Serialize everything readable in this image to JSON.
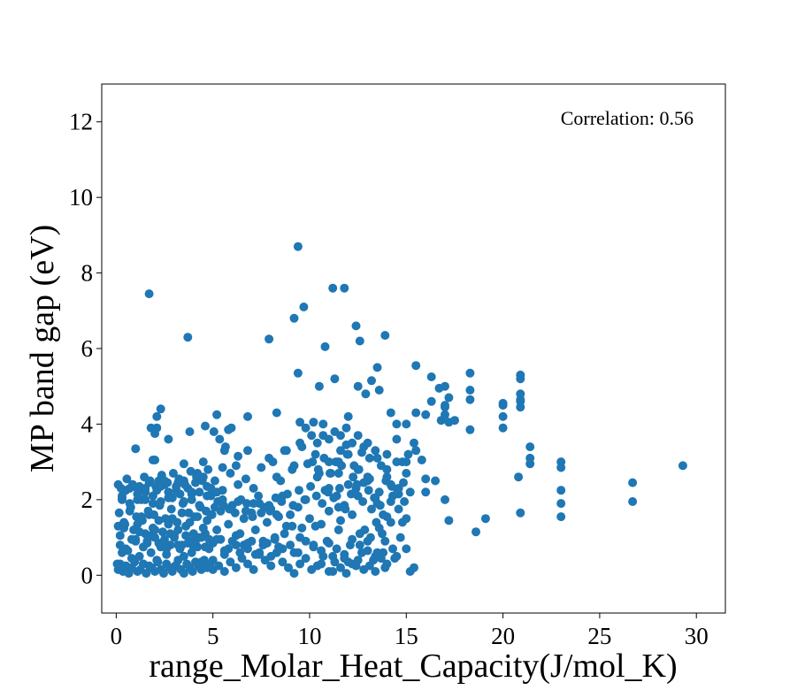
{
  "chart_data": {
    "type": "scatter",
    "xlabel": "range_Molar_Heat_Capacity(J/mol_K)",
    "ylabel": "MP band gap (eV)",
    "annotation": "Correlation: 0.56",
    "xlim": [
      -0.75,
      31.5
    ],
    "ylim": [
      -1,
      13
    ],
    "xticks": [
      0,
      5,
      10,
      15,
      20,
      25,
      30
    ],
    "yticks": [
      0,
      2,
      4,
      6,
      8,
      10,
      12
    ],
    "marker_color": "#1f77b4",
    "series": [
      {
        "x": [
          1.7,
          3.7,
          7.9,
          9.2,
          9.4,
          9.7,
          11.2,
          11.8,
          12.4,
          12.6,
          13.9,
          10.8,
          9.4,
          10.5,
          11.3,
          12.5,
          13.2,
          13.6,
          14.2,
          14.5,
          15.5,
          17.0,
          18.3,
          20.9,
          20.9,
          20.9,
          20.0,
          20.0,
          20.0,
          20.0,
          20.9,
          20.9,
          20.9,
          21.4,
          21.4,
          21.4,
          23.0,
          23.0,
          23.0,
          23.0,
          23.0,
          20.8,
          20.9,
          29.3,
          26.7,
          26.7,
          18.6,
          19.1,
          17.2,
          18.3,
          18.3,
          18.3,
          16.7,
          16.8,
          17.0,
          17.2,
          17.0,
          17.0,
          17.2,
          17.5,
          16.3,
          16.3,
          16.0,
          15.8,
          14.8,
          15.0,
          15.1,
          15.4,
          13.5,
          12.9,
          12.0,
          11.6,
          10.2,
          9.8,
          9.5,
          8.3,
          8.1,
          6.8,
          6.3,
          5.8,
          5.2,
          4.6,
          3.8,
          2.3,
          2.1,
          2.0,
          1.8,
          1.5,
          0.3,
          0.1,
          0.05,
          0.2,
          0.3,
          0.4,
          0.5,
          0.6,
          0.7,
          0.8,
          0.9,
          1.0,
          1.1,
          1.2,
          1.3,
          1.4,
          1.5,
          1.6,
          1.7,
          1.8,
          1.9,
          2.0,
          2.1,
          2.2,
          2.3,
          2.4,
          2.5,
          2.6,
          2.7,
          2.8,
          2.9,
          3.0,
          3.1,
          3.2,
          3.3,
          3.4,
          3.5,
          3.6,
          3.7,
          3.8,
          3.9,
          4.0,
          4.1,
          4.2,
          4.3,
          4.4,
          4.5,
          4.6,
          4.7,
          4.8,
          4.9,
          5.0,
          5.2,
          5.4,
          5.6,
          5.8,
          6.0,
          6.2,
          6.4,
          6.6,
          6.8,
          7.0,
          7.2,
          7.4,
          7.6,
          7.8,
          8.0,
          8.2,
          8.4,
          8.6,
          8.8,
          9.0,
          9.2,
          9.4,
          9.6,
          9.8,
          10.0,
          10.2,
          10.4,
          10.6,
          10.8,
          11.0,
          11.2,
          11.4,
          11.6,
          11.8,
          12.0,
          12.2,
          12.4,
          12.6,
          12.8,
          13.0,
          13.2,
          13.4,
          13.6,
          13.8,
          14.0,
          14.2,
          14.4,
          14.6,
          14.8,
          15.0,
          15.2,
          15.4,
          0.1,
          0.2,
          0.35,
          0.5,
          0.65,
          0.8,
          0.95,
          1.1,
          1.25,
          1.4,
          1.55,
          1.7,
          1.85,
          2.0,
          2.15,
          2.3,
          2.45,
          2.6,
          2.75,
          2.9,
          3.05,
          3.2,
          3.35,
          3.5,
          3.65,
          3.8,
          3.95,
          4.1,
          4.25,
          4.4,
          4.55,
          4.7,
          4.85,
          5.0,
          5.3,
          5.6,
          5.9,
          6.2,
          6.5,
          6.8,
          7.1,
          7.4,
          7.7,
          8.0,
          8.3,
          8.6,
          8.9,
          9.2,
          9.5,
          9.8,
          10.1,
          10.4,
          10.7,
          11.0,
          11.3,
          11.6,
          11.9,
          12.2,
          12.5,
          12.8,
          13.1,
          13.4,
          13.7,
          14.0,
          14.3,
          14.6,
          14.9,
          15.2,
          0.1,
          0.3,
          0.5,
          0.7,
          0.9,
          1.1,
          1.3,
          1.5,
          1.7,
          1.9,
          2.1,
          2.3,
          2.5,
          2.7,
          2.9,
          3.1,
          3.3,
          3.5,
          3.7,
          3.9,
          4.1,
          4.3,
          4.5,
          4.7,
          4.9,
          5.1,
          5.5,
          5.9,
          6.3,
          6.7,
          7.1,
          7.5,
          7.9,
          8.3,
          8.7,
          9.1,
          9.5,
          9.9,
          10.3,
          10.7,
          11.1,
          11.5,
          11.9,
          12.3,
          12.7,
          13.1,
          13.5,
          13.9,
          14.3,
          14.7,
          0.2,
          0.6,
          1.0,
          1.4,
          1.8,
          2.2,
          2.6,
          3.0,
          3.4,
          3.8,
          4.2,
          4.6,
          5.0,
          5.4,
          5.8,
          6.2,
          6.6,
          7.0,
          7.4,
          7.8,
          8.2,
          8.6,
          9.0,
          9.4,
          9.8,
          10.2,
          10.6,
          11.0,
          11.4,
          11.8,
          12.2,
          12.6,
          13.0,
          13.4,
          13.8,
          14.2,
          14.6,
          15.0,
          0.15,
          0.45,
          0.75,
          1.05,
          1.35,
          1.65,
          1.95,
          2.25,
          2.55,
          2.85,
          3.15,
          3.45,
          3.75,
          4.05,
          4.35,
          4.65,
          4.95,
          5.25,
          5.55,
          5.85,
          6.15,
          6.45,
          6.75,
          7.05,
          7.35,
          7.65,
          7.95,
          8.25,
          8.55,
          8.85,
          9.15,
          9.45,
          9.75,
          10.05,
          10.35,
          10.65,
          10.95,
          11.25,
          11.55,
          11.85,
          12.15,
          12.45,
          12.75,
          13.05,
          13.35,
          13.65,
          13.95,
          14.25,
          14.55,
          14.85,
          0.25,
          0.55,
          0.85,
          1.15,
          1.45,
          1.75,
          2.05,
          2.35,
          2.65,
          2.95,
          3.25,
          3.55,
          3.85,
          4.15,
          4.45,
          4.75,
          5.05,
          5.35,
          5.65,
          5.95,
          10.1,
          10.4,
          10.7,
          11.0,
          11.3,
          11.6,
          11.9,
          12.2,
          12.5,
          12.8,
          13.1,
          13.4,
          13.7,
          14.0,
          10.15,
          10.45,
          10.75,
          11.05,
          11.35,
          11.65,
          11.95,
          12.25,
          12.55,
          12.85,
          13.15,
          13.45,
          13.75,
          10.3,
          10.9,
          11.5,
          12.1,
          12.7,
          13.3,
          13.9,
          14.5,
          10.6,
          11.2,
          11.8,
          12.4,
          13.0,
          13.6,
          14.2,
          0.3,
          0.7,
          1.1,
          1.5,
          1.9,
          2.3,
          2.7,
          3.1,
          3.5,
          3.9,
          4.3,
          4.7,
          5.1,
          5.5,
          5.9,
          6.3,
          6.7,
          7.1,
          7.5,
          7.9,
          8.3,
          8.7,
          9.1,
          9.5,
          0.4,
          0.8,
          1.2,
          1.6,
          2.0,
          2.4,
          2.8,
          3.2,
          3.6,
          4.0,
          4.4,
          4.8,
          5.2,
          5.6,
          6.0,
          6.4,
          6.8,
          7.2,
          7.6,
          8.0,
          8.4,
          8.8,
          9.2,
          9.6,
          11.0,
          11.5,
          12.0,
          12.5,
          13.0,
          13.5,
          14.0,
          14.5,
          15.0,
          15.5,
          16.0,
          16.5,
          17.0,
          10.5,
          11.0,
          11.5,
          12.0,
          12.5,
          13.0,
          13.5,
          14.0,
          14.5,
          15.0,
          15.5,
          16.0,
          1.2,
          2.2,
          3.2,
          4.2,
          5.2,
          6.2,
          2.5,
          3.5,
          4.5,
          5.5,
          1.0,
          1.9,
          3.9,
          5.6,
          2.7,
          4.9,
          2.0,
          2.1,
          6.8,
          8.5
        ],
        "y": [
          7.45,
          6.3,
          6.25,
          6.8,
          8.7,
          7.1,
          7.6,
          7.6,
          6.6,
          6.2,
          6.35,
          6.05,
          5.35,
          5.0,
          5.2,
          5.0,
          5.15,
          4.9,
          4.3,
          4.0,
          5.55,
          5.0,
          5.35,
          5.3,
          5.2,
          4.8,
          4.55,
          4.5,
          4.2,
          3.9,
          4.65,
          4.6,
          4.45,
          3.4,
          3.1,
          2.95,
          3.0,
          2.85,
          2.25,
          1.9,
          1.55,
          2.6,
          1.65,
          2.9,
          2.45,
          1.95,
          1.15,
          1.5,
          1.45,
          3.85,
          4.9,
          4.65,
          4.95,
          4.1,
          4.5,
          4.7,
          4.45,
          4.25,
          4.05,
          4.1,
          5.25,
          4.6,
          2.55,
          3.05,
          3.0,
          4.0,
          3.2,
          3.5,
          5.5,
          4.8,
          4.2,
          3.7,
          4.05,
          3.9,
          4.05,
          4.3,
          3.0,
          4.2,
          3.15,
          3.85,
          4.25,
          3.95,
          3.8,
          4.4,
          3.9,
          3.05,
          3.9,
          2.0,
          2.0,
          1.3,
          0.3,
          1.05,
          0.6,
          1.4,
          0.7,
          0.2,
          1.7,
          0.45,
          1.2,
          0.9,
          1.35,
          0.5,
          1.55,
          0.3,
          1.1,
          0.85,
          1.6,
          0.6,
          1.25,
          1.0,
          0.4,
          1.45,
          0.75,
          1.15,
          0.95,
          0.55,
          1.35,
          0.8,
          1.5,
          1.05,
          0.25,
          1.2,
          0.7,
          1.65,
          0.5,
          1.3,
          0.85,
          1.4,
          0.6,
          1.1,
          0.9,
          1.55,
          1.0,
          0.35,
          1.25,
          0.75,
          1.45,
          0.95,
          1.6,
          0.4,
          1.2,
          1.7,
          0.55,
          1.35,
          1.85,
          0.8,
          1.1,
          1.5,
          0.7,
          1.65,
          1.2,
          1.9,
          0.9,
          1.4,
          1.75,
          1.0,
          1.55,
          2.1,
          1.3,
          1.6,
          0.6,
          1.8,
          1.25,
          2.0,
          1.5,
          0.8,
          2.6,
          1.35,
          2.25,
          1.7,
          0.5,
          2.1,
          1.45,
          1.85,
          0.35,
          1.6,
          2.3,
          1.1,
          2.45,
          0.9,
          1.75,
          2.05,
          1.25,
          0.6,
          1.55,
          1.95,
          0.45,
          2.15,
          1.4,
          0.7,
          0.1,
          0.2,
          0.15,
          0.3,
          0.1,
          0.25,
          0.05,
          0.2,
          0.35,
          0.1,
          0.15,
          0.3,
          0.05,
          0.25,
          0.2,
          0.1,
          0.35,
          0.15,
          0.05,
          0.3,
          0.2,
          0.1,
          0.25,
          0.4,
          0.15,
          0.05,
          0.3,
          0.2,
          0.1,
          0.35,
          0.25,
          0.15,
          0.4,
          0.2,
          0.3,
          0.15,
          0.25,
          0.1,
          0.35,
          0.2,
          0.45,
          0.3,
          0.15,
          0.55,
          0.4,
          0.25,
          0.6,
          0.35,
          0.2,
          0.05,
          0.3,
          0.45,
          0.15,
          0.25,
          0.5,
          0.1,
          0.35,
          0.2,
          0.05,
          0.3,
          0.4,
          0.15,
          0.25,
          0.1,
          0.45,
          0.3,
          2.1,
          2.3,
          1.95,
          2.2,
          2.4,
          2.05,
          2.25,
          1.9,
          2.35,
          2.15,
          2.0,
          2.3,
          2.45,
          2.1,
          2.25,
          1.95,
          2.4,
          2.2,
          2.05,
          2.35,
          2.15,
          2.5,
          2.3,
          2.0,
          2.45,
          2.2,
          2.6,
          2.35,
          2.1,
          2.5,
          2.25,
          2.7,
          2.4,
          2.55,
          2.3,
          2.85,
          3.1,
          2.6,
          3.3,
          2.8,
          3.5,
          2.95,
          3.2,
          3.7,
          2.7,
          3.0,
          3.45,
          2.9,
          3.25,
          2.55,
          0.6,
          0.9,
          0.7,
          1.0,
          0.8,
          0.65,
          0.95,
          0.75,
          1.05,
          0.85,
          0.7,
          1.0,
          0.8,
          0.9,
          0.75,
          1.1,
          0.85,
          0.95,
          0.7,
          1.05,
          0.8,
          0.9,
          0.6,
          0.85,
          0.95,
          0.7,
          0.8,
          0.6,
          0.9,
          0.75,
          0.65,
          0.85,
          0.7,
          0.55,
          0.95,
          0.8,
          0.65,
          0.5,
          1.6,
          1.4,
          1.75,
          1.5,
          1.65,
          1.35,
          1.8,
          1.55,
          1.45,
          1.7,
          1.6,
          1.85,
          1.5,
          1.75,
          1.4,
          1.9,
          1.65,
          1.55,
          1.8,
          1.7,
          1.6,
          1.95,
          1.85,
          1.75,
          1.65,
          2.0,
          1.9,
          1.55,
          2.1,
          1.8,
          1.7,
          2.05,
          1.95,
          2.15,
          1.85,
          2.25,
          2.0,
          2.35,
          2.1,
          1.9,
          2.2,
          2.05,
          2.3,
          1.75,
          2.15,
          2.4,
          1.95,
          2.25,
          2.05,
          1.85,
          2.5,
          2.35,
          2.2,
          2.45,
          2.3,
          2.55,
          2.4,
          2.25,
          2.6,
          2.5,
          2.35,
          2.65,
          2.45,
          2.7,
          2.55,
          2.4,
          2.75,
          2.6,
          2.5,
          2.8,
          3.8,
          3.6,
          3.4,
          3.9,
          3.7,
          3.5,
          4.0,
          3.6,
          3.8,
          3.3,
          3.9,
          3.5,
          3.7,
          3.4,
          3.1,
          3.3,
          2.9,
          3.2,
          3.0,
          2.8,
          3.1,
          2.7,
          3.0,
          2.9,
          3.2,
          2.6,
          2.8,
          1.2,
          1.0,
          1.4,
          1.1,
          1.3,
          0.9,
          1.2,
          0.8,
          0.6,
          0.4,
          0.2,
          0.5,
          0.3,
          0.1,
          0.45,
          0.25,
          2.5,
          2.2,
          2.4,
          2.1,
          2.3,
          2.0,
          2.2,
          1.9,
          2.35,
          2.05,
          2.25,
          1.95,
          2.15,
          1.85,
          2.1,
          1.8,
          2.0,
          1.75,
          1.95,
          1.7,
          1.9,
          1.65,
          1.85,
          1.6,
          1.1,
          1.3,
          1.0,
          1.25,
          0.95,
          1.15,
          0.9,
          1.2,
          0.85,
          1.1,
          0.8,
          1.05,
          0.75,
          1.0,
          0.7,
          0.95,
          0.65,
          0.9,
          0.6,
          0.85,
          0.55,
          0.8,
          0.5,
          0.75,
          3.3,
          2.9,
          3.4,
          3.0,
          2.7,
          3.2,
          2.8,
          3.5,
          3.1,
          2.6,
          3.0,
          2.7,
          3.3,
          2.2,
          2.5,
          2.0,
          2.7,
          2.3,
          1.8,
          2.4,
          2.1,
          2.6,
          1.9,
          2.8,
          3.6,
          3.0,
          4.3,
          4.25,
          2.35,
          2.5,
          2.45,
          2.7,
          2.2,
          2.9,
          2.5,
          2.95,
          3.0,
          2.85,
          3.35,
          3.05,
          2.2,
          3.3,
          3.6,
          2.3,
          3.75,
          4.2,
          3.3,
          2.5
        ]
      }
    ]
  }
}
